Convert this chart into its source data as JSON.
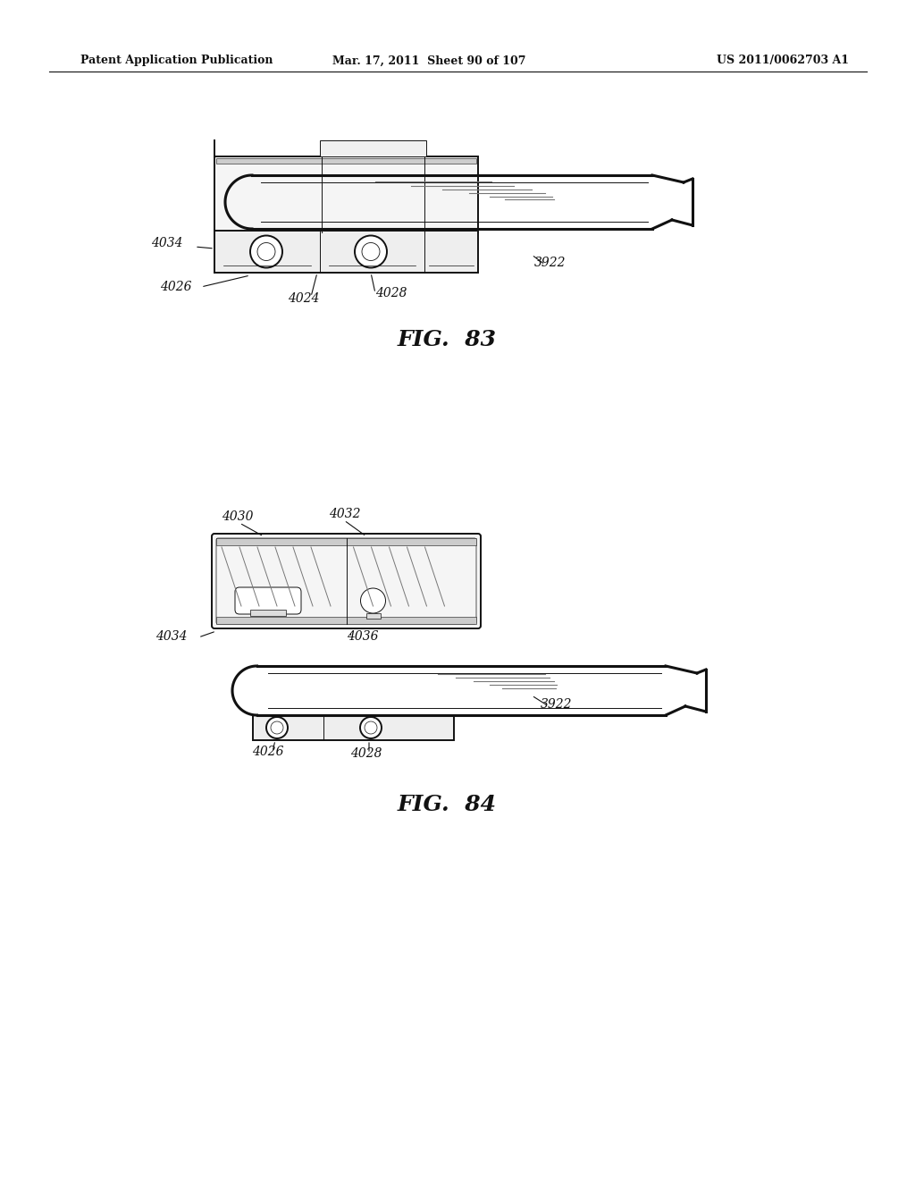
{
  "background_color": "#ffffff",
  "header_left": "Patent Application Publication",
  "header_center": "Mar. 17, 2011  Sheet 90 of 107",
  "header_right": "US 2011/0062703 A1",
  "fig83_label": "FIG.  83",
  "fig84_label": "FIG.  84",
  "line_color": "#111111",
  "shade_color": "#777777",
  "fill_light": "#f2f2f2",
  "fill_mid": "#d8d8d8"
}
